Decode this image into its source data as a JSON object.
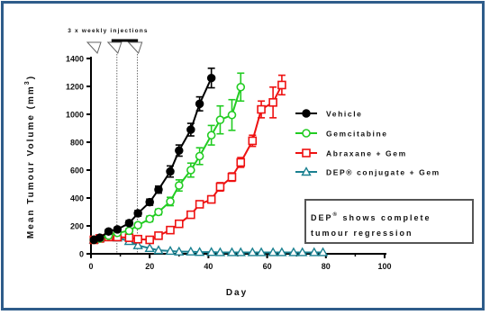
{
  "chart_data": {
    "type": "line",
    "ylabel": "Mean Tumour Volume (mm",
    "ylabel_sup": "3",
    "ylabel_close": ")",
    "xlabel": "Day",
    "xlim": [
      0,
      100
    ],
    "ylim": [
      0,
      1400
    ],
    "xticks": [
      0,
      20,
      40,
      60,
      80,
      100
    ],
    "yticks": [
      0,
      200,
      400,
      600,
      800,
      1000,
      1200,
      1400
    ],
    "grid": false,
    "legend_position": "right",
    "annotation": {
      "text": "3 x weekly injections",
      "injection_days": [
        0,
        7,
        14
      ],
      "bar_range": [
        7,
        16
      ]
    },
    "callout": {
      "line1_a": "DEP",
      "line1_reg": "®",
      "line1_b": " shows complete",
      "line2": "tumour regression"
    },
    "series": [
      {
        "name": "Vehicle",
        "color": "#000000",
        "marker": "filled-circle",
        "points": [
          {
            "x": 1,
            "y": 100,
            "e": 10
          },
          {
            "x": 3,
            "y": 115,
            "e": 12
          },
          {
            "x": 6,
            "y": 160,
            "e": 15
          },
          {
            "x": 9,
            "y": 175,
            "e": 15
          },
          {
            "x": 13,
            "y": 220,
            "e": 18
          },
          {
            "x": 16,
            "y": 290,
            "e": 20
          },
          {
            "x": 20,
            "y": 370,
            "e": 22
          },
          {
            "x": 23,
            "y": 460,
            "e": 25
          },
          {
            "x": 27,
            "y": 590,
            "e": 40
          },
          {
            "x": 30,
            "y": 740,
            "e": 40
          },
          {
            "x": 34,
            "y": 890,
            "e": 45
          },
          {
            "x": 37,
            "y": 1075,
            "e": 50
          },
          {
            "x": 41,
            "y": 1260,
            "e": 70
          }
        ]
      },
      {
        "name": "Gemcitabine",
        "color": "#22cc22",
        "marker": "open-circle",
        "points": [
          {
            "x": 1,
            "y": 100,
            "e": 10
          },
          {
            "x": 3,
            "y": 110,
            "e": 10
          },
          {
            "x": 6,
            "y": 130,
            "e": 12
          },
          {
            "x": 9,
            "y": 150,
            "e": 12
          },
          {
            "x": 13,
            "y": 165,
            "e": 15
          },
          {
            "x": 16,
            "y": 205,
            "e": 15
          },
          {
            "x": 20,
            "y": 250,
            "e": 20
          },
          {
            "x": 23,
            "y": 300,
            "e": 20
          },
          {
            "x": 27,
            "y": 375,
            "e": 30
          },
          {
            "x": 30,
            "y": 490,
            "e": 40
          },
          {
            "x": 34,
            "y": 600,
            "e": 50
          },
          {
            "x": 37,
            "y": 700,
            "e": 60
          },
          {
            "x": 41,
            "y": 850,
            "e": 70
          },
          {
            "x": 44,
            "y": 960,
            "e": 100
          },
          {
            "x": 48,
            "y": 995,
            "e": 110
          },
          {
            "x": 51,
            "y": 1195,
            "e": 100
          }
        ]
      },
      {
        "name": "Abraxane + Gem",
        "color": "#ee1111",
        "marker": "open-square",
        "points": [
          {
            "x": 1,
            "y": 100,
            "e": 10
          },
          {
            "x": 3,
            "y": 110,
            "e": 10
          },
          {
            "x": 6,
            "y": 120,
            "e": 10
          },
          {
            "x": 9,
            "y": 120,
            "e": 10
          },
          {
            "x": 13,
            "y": 115,
            "e": 10
          },
          {
            "x": 16,
            "y": 105,
            "e": 10
          },
          {
            "x": 20,
            "y": 100,
            "e": 10
          },
          {
            "x": 23,
            "y": 130,
            "e": 10
          },
          {
            "x": 27,
            "y": 170,
            "e": 15
          },
          {
            "x": 30,
            "y": 215,
            "e": 15
          },
          {
            "x": 34,
            "y": 280,
            "e": 20
          },
          {
            "x": 37,
            "y": 355,
            "e": 20
          },
          {
            "x": 41,
            "y": 390,
            "e": 25
          },
          {
            "x": 44,
            "y": 480,
            "e": 30
          },
          {
            "x": 48,
            "y": 550,
            "e": 30
          },
          {
            "x": 51,
            "y": 655,
            "e": 35
          },
          {
            "x": 55,
            "y": 810,
            "e": 40
          },
          {
            "x": 58,
            "y": 1035,
            "e": 60
          },
          {
            "x": 62,
            "y": 1085,
            "e": 110
          },
          {
            "x": 65,
            "y": 1210,
            "e": 70
          }
        ]
      },
      {
        "name": "DEP® conjugate + Gem",
        "color": "#1a8090",
        "marker": "open-triangle",
        "points": [
          {
            "x": 1,
            "y": 100,
            "e": 8
          },
          {
            "x": 3,
            "y": 110,
            "e": 8
          },
          {
            "x": 6,
            "y": 120,
            "e": 8
          },
          {
            "x": 9,
            "y": 115,
            "e": 8
          },
          {
            "x": 13,
            "y": 90,
            "e": 8
          },
          {
            "x": 16,
            "y": 60,
            "e": 8
          },
          {
            "x": 20,
            "y": 40,
            "e": 8
          },
          {
            "x": 23,
            "y": 25,
            "e": 5
          },
          {
            "x": 27,
            "y": 20,
            "e": 5
          },
          {
            "x": 30,
            "y": 15,
            "e": 3
          },
          {
            "x": 34,
            "y": 15,
            "e": 3
          },
          {
            "x": 37,
            "y": 12,
            "e": 3
          },
          {
            "x": 41,
            "y": 12,
            "e": 3
          },
          {
            "x": 44,
            "y": 10,
            "e": 3
          },
          {
            "x": 48,
            "y": 10,
            "e": 3
          },
          {
            "x": 51,
            "y": 10,
            "e": 3
          },
          {
            "x": 55,
            "y": 10,
            "e": 3
          },
          {
            "x": 58,
            "y": 10,
            "e": 3
          },
          {
            "x": 62,
            "y": 10,
            "e": 3
          },
          {
            "x": 65,
            "y": 10,
            "e": 3
          },
          {
            "x": 69,
            "y": 10,
            "e": 3
          },
          {
            "x": 72,
            "y": 10,
            "e": 3
          },
          {
            "x": 76,
            "y": 10,
            "e": 3
          },
          {
            "x": 79,
            "y": 10,
            "e": 3
          }
        ]
      }
    ]
  }
}
